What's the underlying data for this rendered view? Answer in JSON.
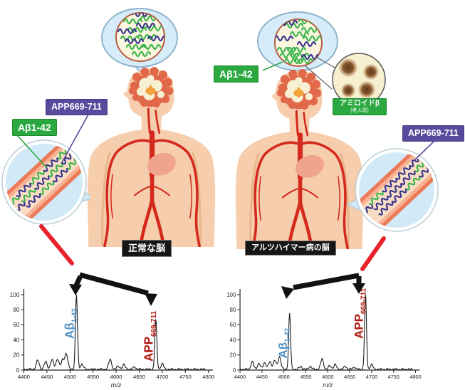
{
  "left_panel": {
    "caption": "正常な脳",
    "app_label": "APP669-711",
    "abeta_label": "Aβ1-42"
  },
  "right_panel": {
    "caption": "アルツハイマー病の脳",
    "app_label": "APP669-711",
    "abeta_label": "Aβ1-42",
    "amyloid_label": "アミロイドβ",
    "amyloid_sublabel": "(老人斑)"
  },
  "colors": {
    "abeta_tag_green": "#2ba840",
    "app_tag_purple": "#584a9c",
    "squiggle_green": "#3ab54a",
    "squiggle_purple": "#38348f",
    "abeta_peak_text_blue": "#5494c7",
    "app_peak_text_red": "#b21b12",
    "artery_red": "#d42a1d",
    "skin": "#f6cead",
    "bubble_blue": "#d6ecf9",
    "vessel_salmon": "#ee7f5e",
    "arrow_red": "#e8212b",
    "caption_black": "#161616"
  },
  "chart_data": [
    {
      "type": "line",
      "title": "",
      "xlabel": "m/z",
      "ylabel": "",
      "xlim": [
        4400,
        4800
      ],
      "ylim": [
        0,
        100
      ],
      "x_ticks": [
        4400,
        4450,
        4500,
        4550,
        4600,
        4650,
        4700,
        4750,
        4800
      ],
      "y_ticks": [
        0,
        20,
        40,
        60,
        80,
        100
      ],
      "grid": false,
      "peaks": [
        [
          4430,
          12
        ],
        [
          4447,
          10
        ],
        [
          4461,
          13
        ],
        [
          4473,
          14
        ],
        [
          4484,
          12
        ],
        [
          4492,
          21
        ],
        [
          4514,
          100
        ],
        [
          4526,
          7
        ],
        [
          4587,
          13
        ],
        [
          4605,
          4
        ],
        [
          4617,
          6
        ],
        [
          4640,
          3
        ],
        [
          4686,
          66
        ],
        [
          4700,
          7
        ]
      ],
      "annotations": [
        {
          "text": "Aβ",
          "sub": "1-42",
          "mz": 4514,
          "color": "#5494c7"
        },
        {
          "text": "APP",
          "sub": "669-711",
          "mz": 4686,
          "color": "#b21b12"
        }
      ]
    },
    {
      "type": "line",
      "title": "",
      "xlabel": "m/z",
      "ylabel": "",
      "xlim": [
        4400,
        4800
      ],
      "ylim": [
        0,
        100
      ],
      "x_ticks": [
        4400,
        4450,
        4500,
        4550,
        4600,
        4650,
        4700,
        4750,
        4800
      ],
      "y_ticks": [
        0,
        20,
        40,
        60,
        80,
        100
      ],
      "grid": false,
      "peaks": [
        [
          4428,
          10
        ],
        [
          4443,
          8
        ],
        [
          4456,
          9
        ],
        [
          4468,
          10
        ],
        [
          4479,
          12
        ],
        [
          4490,
          17
        ],
        [
          4513,
          74
        ],
        [
          4538,
          4
        ],
        [
          4560,
          4
        ],
        [
          4587,
          14
        ],
        [
          4605,
          5
        ],
        [
          4617,
          6
        ],
        [
          4640,
          4
        ],
        [
          4660,
          3
        ],
        [
          4686,
          100
        ],
        [
          4700,
          6
        ]
      ],
      "annotations": [
        {
          "text": "Aβ",
          "sub": "1-42",
          "mz": 4513,
          "color": "#5494c7"
        },
        {
          "text": "APP",
          "sub": "669-711",
          "mz": 4686,
          "color": "#b21b12"
        }
      ]
    }
  ]
}
